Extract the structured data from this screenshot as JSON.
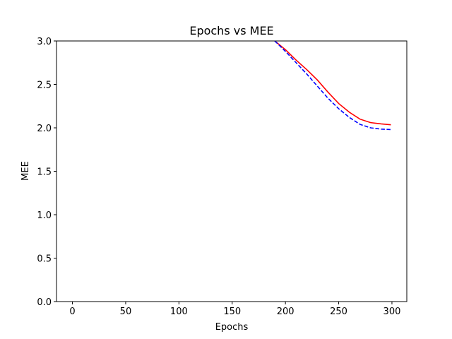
{
  "chart_data": {
    "type": "line",
    "title": "Epochs vs MEE",
    "x_label": "Epochs",
    "y_label": "MEE",
    "x": [
      190,
      200,
      210,
      220,
      230,
      240,
      250,
      260,
      270,
      280,
      290,
      299
    ],
    "series": [
      {
        "color": "#ff0000",
        "dash": "solid",
        "values": [
          3.0,
          2.9,
          2.78,
          2.67,
          2.55,
          2.41,
          2.28,
          2.18,
          2.1,
          2.06,
          2.045,
          2.035
        ]
      },
      {
        "color": "#0000ff",
        "dash": "dashed",
        "values": [
          3.0,
          2.88,
          2.75,
          2.62,
          2.48,
          2.34,
          2.22,
          2.12,
          2.04,
          2.0,
          1.985,
          1.98
        ]
      }
    ],
    "xlim": [
      -14.95,
      313.95
    ],
    "xticks": [
      0,
      50,
      100,
      150,
      200,
      250,
      300
    ],
    "ylim": [
      0,
      3
    ],
    "yticks": [
      {
        "value": 0,
        "label": "0.0"
      },
      {
        "value": 0.5,
        "label": "0.5"
      },
      {
        "value": 1,
        "label": "1.0"
      },
      {
        "value": 1.5,
        "label": "1.5"
      },
      {
        "value": 2,
        "label": "2.0"
      },
      {
        "value": 2.5,
        "label": "2.5"
      },
      {
        "value": 3,
        "label": "3.0"
      }
    ]
  }
}
